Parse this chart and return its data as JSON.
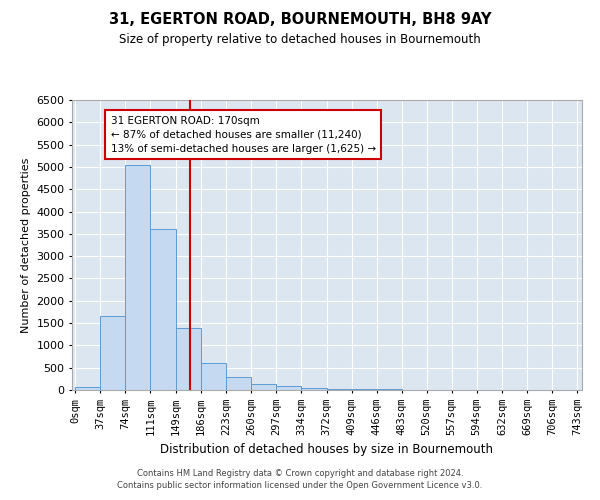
{
  "title1": "31, EGERTON ROAD, BOURNEMOUTH, BH8 9AY",
  "title2": "Size of property relative to detached houses in Bournemouth",
  "xlabel": "Distribution of detached houses by size in Bournemouth",
  "ylabel": "Number of detached properties",
  "footnote1": "Contains HM Land Registry data © Crown copyright and database right 2024.",
  "footnote2": "Contains public sector information licensed under the Open Government Licence v3.0.",
  "bin_edges": [
    0,
    37,
    74,
    111,
    149,
    186,
    223,
    260,
    297,
    334,
    372,
    409,
    446,
    483,
    520,
    557,
    594,
    632,
    669,
    706,
    743
  ],
  "bar_heights": [
    75,
    1650,
    5050,
    3600,
    1400,
    600,
    300,
    140,
    80,
    50,
    30,
    20,
    15,
    10,
    8,
    6,
    5,
    4,
    3,
    3
  ],
  "bar_color": "#c5d9f1",
  "bar_edge_color": "#5b9bd5",
  "background_color": "#dce6f1",
  "grid_color": "#ffffff",
  "vline_x": 170,
  "vline_color": "#cc0000",
  "annotation_text": "31 EGERTON ROAD: 170sqm\n← 87% of detached houses are smaller (11,240)\n13% of semi-detached houses are larger (1,625) →",
  "annotation_box_color": "#ffffff",
  "annotation_box_edge": "#cc0000",
  "ylim": [
    0,
    6500
  ],
  "yticks": [
    0,
    500,
    1000,
    1500,
    2000,
    2500,
    3000,
    3500,
    4000,
    4500,
    5000,
    5500,
    6000,
    6500
  ],
  "tick_labels": [
    "0sqm",
    "37sqm",
    "74sqm",
    "111sqm",
    "149sqm",
    "186sqm",
    "223sqm",
    "260sqm",
    "297sqm",
    "334sqm",
    "372sqm",
    "409sqm",
    "446sqm",
    "483sqm",
    "520sqm",
    "557sqm",
    "594sqm",
    "632sqm",
    "669sqm",
    "706sqm",
    "743sqm"
  ]
}
